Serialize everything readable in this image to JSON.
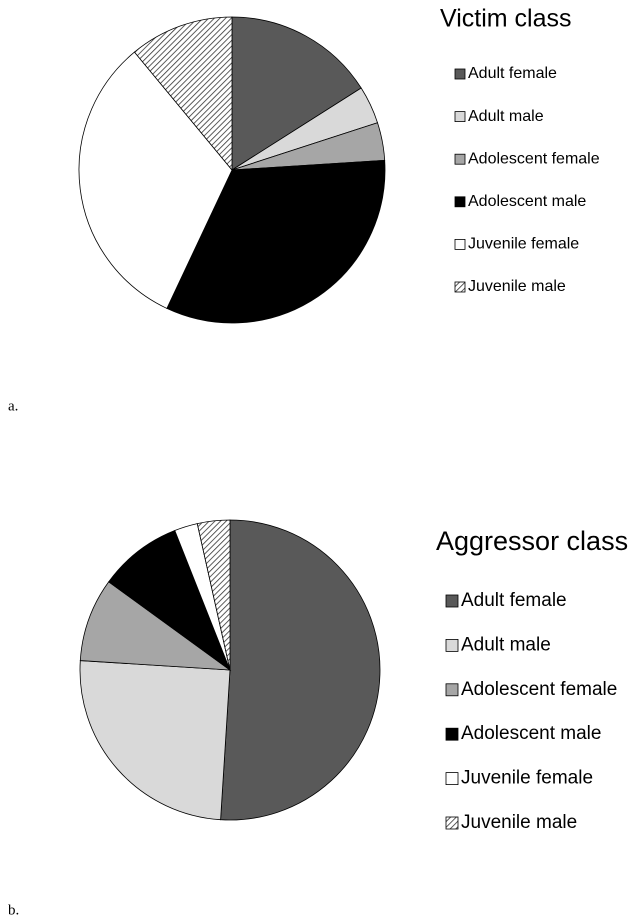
{
  "chart_data": [
    {
      "type": "pie",
      "title": "Victim class",
      "label": "a.",
      "categories": [
        "Adult female",
        "Adult male",
        "Adolescent female",
        "Adolescent male",
        "Juvenile female",
        "Juvenile male"
      ],
      "values": [
        16,
        4,
        4,
        33,
        32,
        11
      ],
      "colors": [
        "#595959",
        "#d9d9d9",
        "#a6a6a6",
        "#000000",
        "#ffffff",
        "#ffffff"
      ],
      "hatched": [
        false,
        false,
        false,
        false,
        false,
        true
      ]
    },
    {
      "type": "pie",
      "title": "Aggressor class",
      "label": "b.",
      "categories": [
        "Adult female",
        "Adult male",
        "Adolescent female",
        "Adolescent male",
        "Juvenile female",
        "Juvenile male"
      ],
      "values": [
        51,
        25,
        9,
        9,
        2.5,
        3.5
      ],
      "colors": [
        "#595959",
        "#d9d9d9",
        "#a6a6a6",
        "#000000",
        "#ffffff",
        "#ffffff"
      ],
      "hatched": [
        false,
        false,
        false,
        false,
        false,
        true
      ]
    }
  ]
}
